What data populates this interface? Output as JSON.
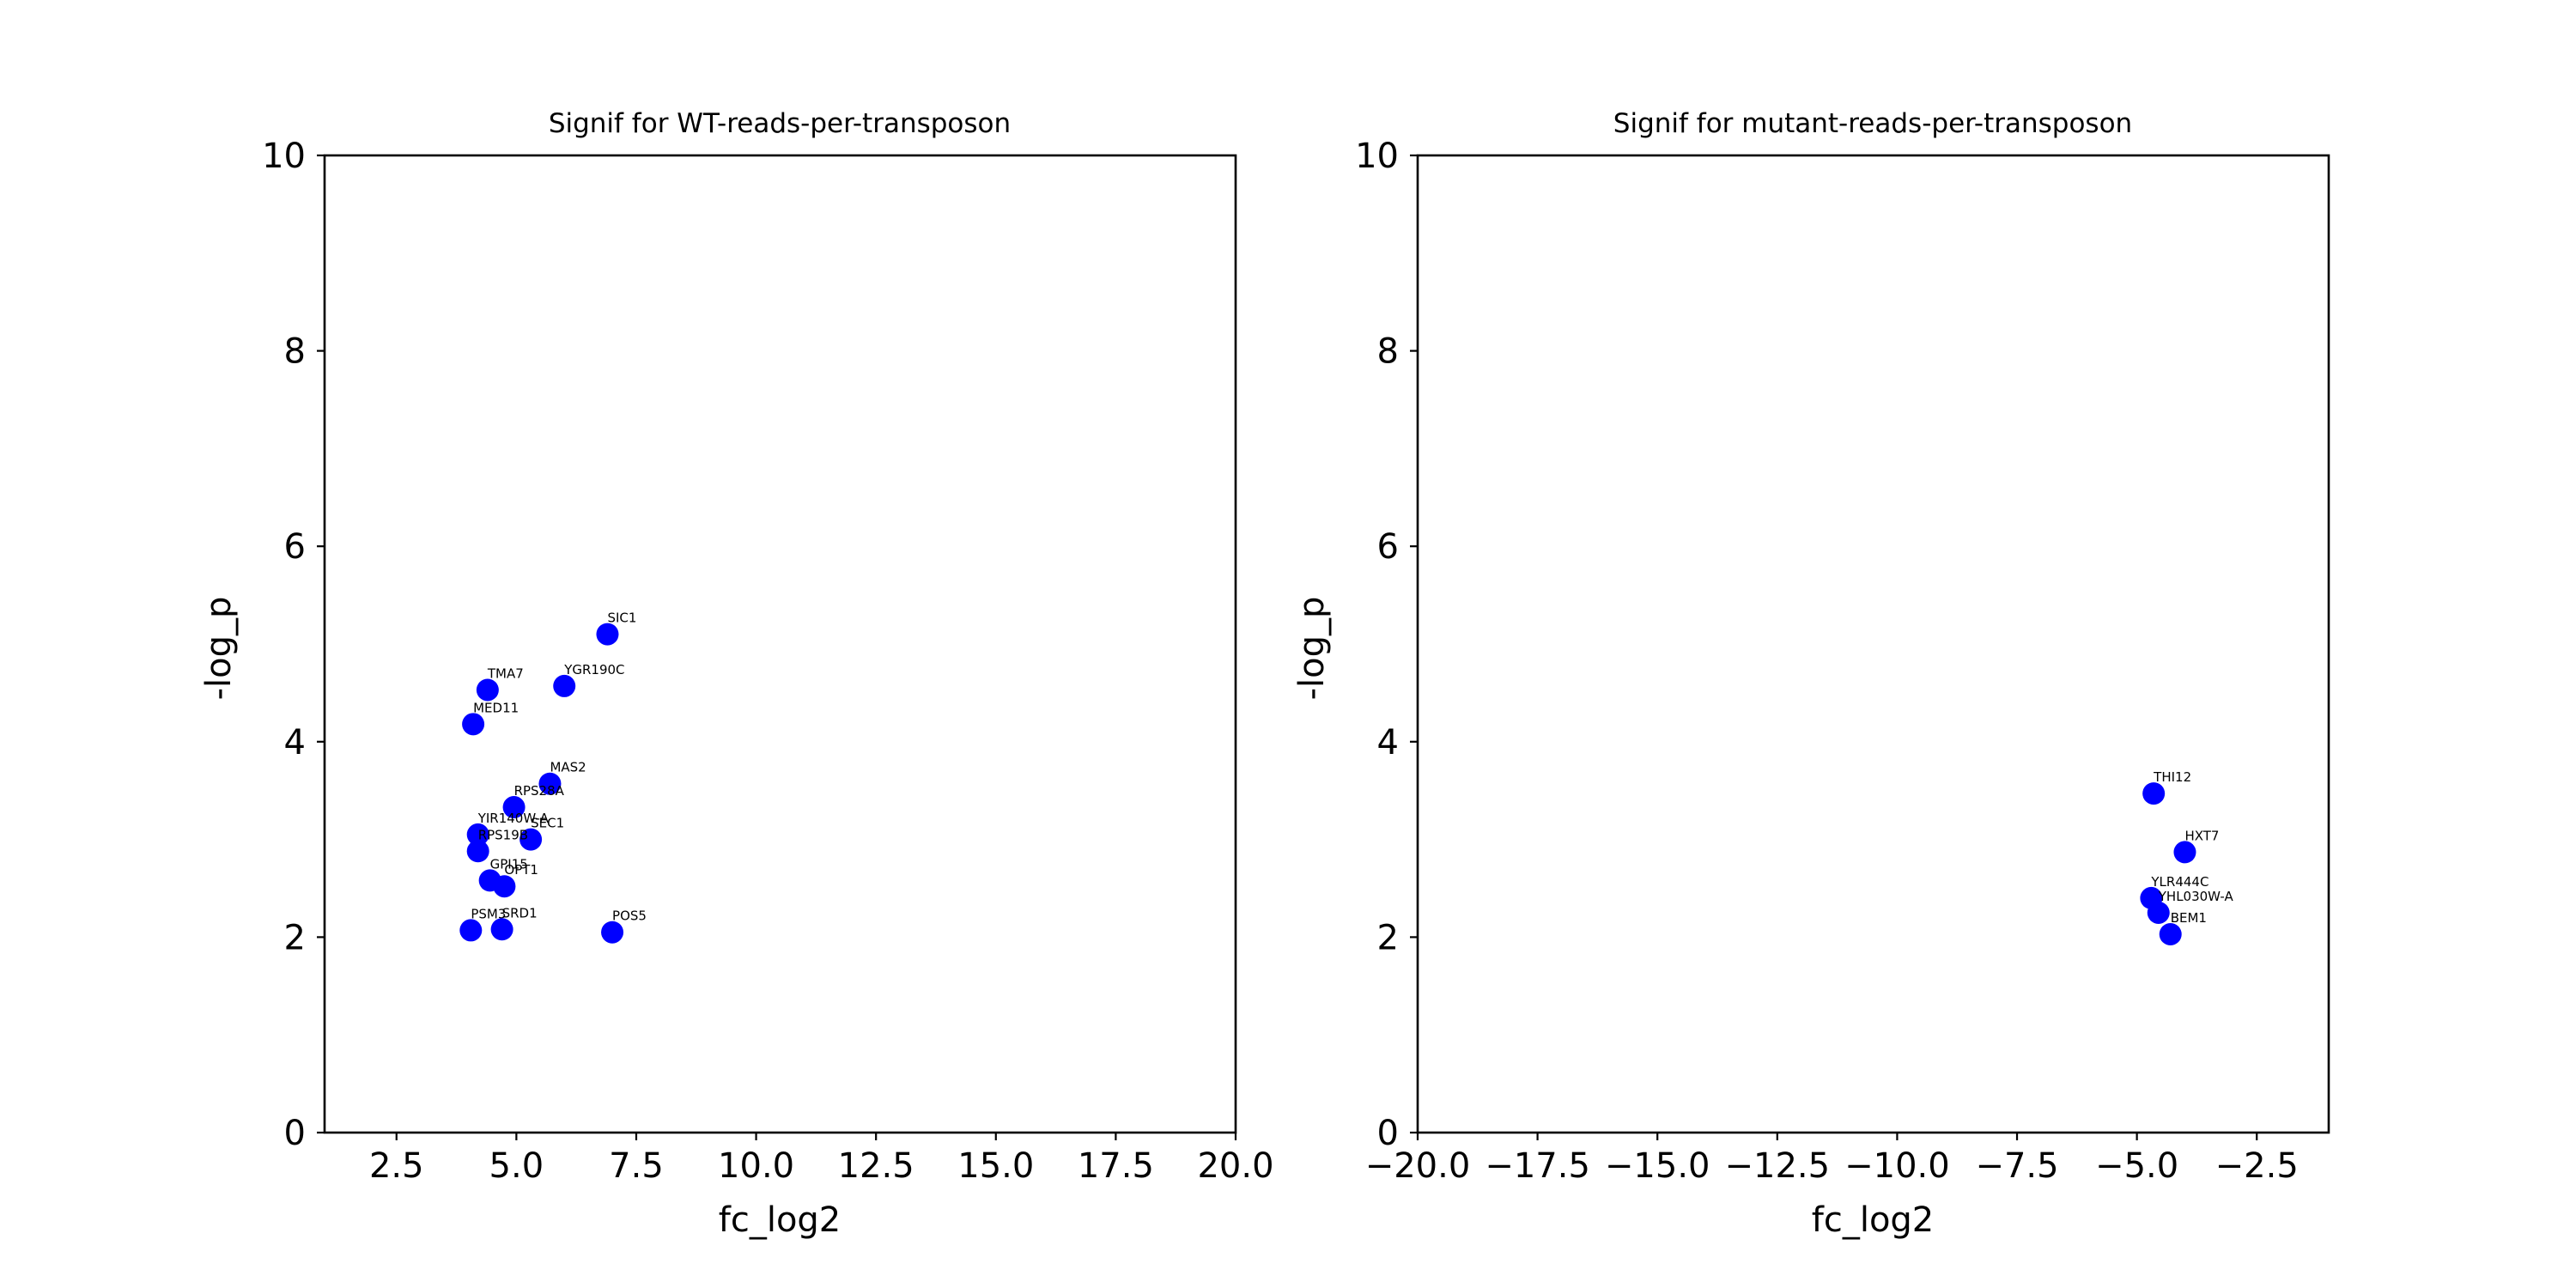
{
  "chart_data": [
    {
      "type": "scatter",
      "title": "Signif for WT-reads-per-transposon",
      "xlabel": "fc_log2",
      "ylabel": "-log_p",
      "xlim": [
        1.0,
        20.0
      ],
      "ylim": [
        0,
        10
      ],
      "xticks": [
        2.5,
        5.0,
        7.5,
        10.0,
        12.5,
        15.0,
        17.5,
        20.0
      ],
      "xtick_labels": [
        "2.5",
        "5.0",
        "7.5",
        "10.0",
        "12.5",
        "15.0",
        "17.5",
        "20.0"
      ],
      "yticks": [
        0,
        2,
        4,
        6,
        8,
        10
      ],
      "ytick_labels": [
        "0",
        "2",
        "4",
        "6",
        "8",
        "10"
      ],
      "grid": false,
      "marker_color": "#0000ff",
      "points": [
        {
          "label": "SIC1",
          "x": 6.9,
          "y": 5.1
        },
        {
          "label": "TMA7",
          "x": 4.4,
          "y": 4.53
        },
        {
          "label": "YGR190C",
          "x": 6.0,
          "y": 4.57
        },
        {
          "label": "MED11",
          "x": 4.1,
          "y": 4.18
        },
        {
          "label": "MAS2",
          "x": 5.7,
          "y": 3.57
        },
        {
          "label": "RPS28A",
          "x": 4.95,
          "y": 3.33
        },
        {
          "label": "YIR140W-A",
          "x": 4.2,
          "y": 3.05
        },
        {
          "label": "SEC1",
          "x": 5.3,
          "y": 3.0
        },
        {
          "label": "RPS19B",
          "x": 4.2,
          "y": 2.88
        },
        {
          "label": "GPI15",
          "x": 4.45,
          "y": 2.58
        },
        {
          "label": "OPT1",
          "x": 4.75,
          "y": 2.52
        },
        {
          "label": "PSM3",
          "x": 4.05,
          "y": 2.07
        },
        {
          "label": "SRD1",
          "x": 4.7,
          "y": 2.08
        },
        {
          "label": "POS5",
          "x": 7.0,
          "y": 2.05
        }
      ]
    },
    {
      "type": "scatter",
      "title": "Signif for mutant-reads-per-transposon",
      "xlabel": "fc_log2",
      "ylabel": "-log_p",
      "xlim": [
        -20.0,
        -1.0
      ],
      "ylim": [
        0,
        10
      ],
      "xticks": [
        -20.0,
        -17.5,
        -15.0,
        -12.5,
        -10.0,
        -7.5,
        -5.0,
        -2.5
      ],
      "xtick_labels": [
        "−20.0",
        "−17.5",
        "−15.0",
        "−12.5",
        "−10.0",
        "−7.5",
        "−5.0",
        "−2.5"
      ],
      "yticks": [
        0,
        2,
        4,
        6,
        8,
        10
      ],
      "ytick_labels": [
        "0",
        "2",
        "4",
        "6",
        "8",
        "10"
      ],
      "grid": false,
      "marker_color": "#0000ff",
      "points": [
        {
          "label": "THI12",
          "x": -4.65,
          "y": 3.47
        },
        {
          "label": "HXT7",
          "x": -4.0,
          "y": 2.87
        },
        {
          "label": "YLR444C",
          "x": -4.7,
          "y": 2.4
        },
        {
          "label": "YHL030W-A",
          "x": -4.55,
          "y": 2.25
        },
        {
          "label": "BEM1",
          "x": -4.3,
          "y": 2.03
        }
      ]
    }
  ]
}
